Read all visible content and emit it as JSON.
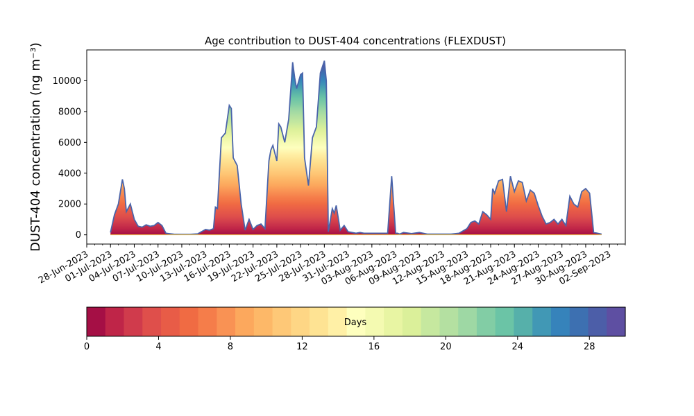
{
  "chart_data": {
    "type": "area",
    "title": "Age contribution to DUST-404 concentrations (FLEXDUST)",
    "ylabel": "DUST-404 concentration (ng m⁻³)",
    "xlabel": "",
    "y_ticks": [
      0,
      2000,
      4000,
      6000,
      8000,
      10000
    ],
    "y_tick_labels": [
      "0",
      "2000",
      "4000",
      "6000",
      "8000",
      "10000"
    ],
    "ylim": [
      -600,
      12000
    ],
    "x_range_dates": [
      "2023-06-28",
      "2023-09-04"
    ],
    "x_tick_labels": [
      "28-Jun-2023",
      "01-Jul-2023",
      "04-Jul-2023",
      "07-Jul-2023",
      "10-Jul-2023",
      "13-Jul-2023",
      "16-Jul-2023",
      "19-Jul-2023",
      "22-Jul-2023",
      "25-Jul-2023",
      "28-Jul-2023",
      "31-Jul-2023",
      "03-Aug-2023",
      "06-Aug-2023",
      "09-Aug-2023",
      "12-Aug-2023",
      "15-Aug-2023",
      "18-Aug-2023",
      "21-Aug-2023",
      "24-Aug-2023",
      "27-Aug-2023",
      "30-Aug-2023",
      "02-Sep-2023"
    ],
    "x_tick_dates": [
      "2023-06-28",
      "2023-07-01",
      "2023-07-04",
      "2023-07-07",
      "2023-07-10",
      "2023-07-13",
      "2023-07-16",
      "2023-07-19",
      "2023-07-22",
      "2023-07-25",
      "2023-07-28",
      "2023-07-31",
      "2023-08-03",
      "2023-08-06",
      "2023-08-09",
      "2023-08-12",
      "2023-08-15",
      "2023-08-18",
      "2023-08-21",
      "2023-08-24",
      "2023-08-27",
      "2023-08-30",
      "2023-09-02"
    ],
    "total_series": {
      "x": [
        "2023-07-01",
        "2023-07-01T12:00",
        "2023-07-02",
        "2023-07-02T12:00",
        "2023-07-02T18:00",
        "2023-07-03",
        "2023-07-03T12:00",
        "2023-07-04",
        "2023-07-04T12:00",
        "2023-07-05",
        "2023-07-05T12:00",
        "2023-07-06",
        "2023-07-06T12:00",
        "2023-07-07",
        "2023-07-07T12:00",
        "2023-07-08",
        "2023-07-09",
        "2023-07-10",
        "2023-07-11",
        "2023-07-12",
        "2023-07-13",
        "2023-07-13T12:00",
        "2023-07-14",
        "2023-07-14T06:00",
        "2023-07-14T12:00",
        "2023-07-15",
        "2023-07-15T12:00",
        "2023-07-16",
        "2023-07-16T06:00",
        "2023-07-16T12:00",
        "2023-07-17",
        "2023-07-17T12:00",
        "2023-07-18",
        "2023-07-18T12:00",
        "2023-07-19",
        "2023-07-19T12:00",
        "2023-07-20",
        "2023-07-20T12:00",
        "2023-07-21",
        "2023-07-21T06:00",
        "2023-07-21T12:00",
        "2023-07-22",
        "2023-07-22T06:00",
        "2023-07-22T12:00",
        "2023-07-23",
        "2023-07-23T12:00",
        "2023-07-24",
        "2023-07-24T06:00",
        "2023-07-24T12:00",
        "2023-07-25",
        "2023-07-25T06:00",
        "2023-07-25T12:00",
        "2023-07-26",
        "2023-07-26T12:00",
        "2023-07-27",
        "2023-07-27T12:00",
        "2023-07-28",
        "2023-07-28T06:00",
        "2023-07-28T12:00",
        "2023-07-29",
        "2023-07-29T06:00",
        "2023-07-29T12:00",
        "2023-07-30",
        "2023-07-30T12:00",
        "2023-07-31",
        "2023-07-31T12:00",
        "2023-08-01",
        "2023-08-01T12:00",
        "2023-08-02",
        "2023-08-03",
        "2023-08-04",
        "2023-08-05",
        "2023-08-05T12:00",
        "2023-08-06",
        "2023-08-06T06:00",
        "2023-08-06T12:00",
        "2023-08-07",
        "2023-08-08",
        "2023-08-09",
        "2023-08-10",
        "2023-08-11",
        "2023-08-12",
        "2023-08-13",
        "2023-08-14",
        "2023-08-15",
        "2023-08-15T12:00",
        "2023-08-16",
        "2023-08-16T12:00",
        "2023-08-17",
        "2023-08-17T12:00",
        "2023-08-18",
        "2023-08-18T06:00",
        "2023-08-18T12:00",
        "2023-08-19",
        "2023-08-19T12:00",
        "2023-08-20",
        "2023-08-20T12:00",
        "2023-08-21",
        "2023-08-21T12:00",
        "2023-08-22",
        "2023-08-22T12:00",
        "2023-08-23",
        "2023-08-23T12:00",
        "2023-08-24",
        "2023-08-24T12:00",
        "2023-08-25",
        "2023-08-25T12:00",
        "2023-08-26",
        "2023-08-26T12:00",
        "2023-08-27",
        "2023-08-27T12:00",
        "2023-08-28",
        "2023-08-28T12:00",
        "2023-08-29",
        "2023-08-29T12:00",
        "2023-08-30",
        "2023-08-30T12:00",
        "2023-08-31",
        "2023-09-01"
      ],
      "y": [
        150,
        1300,
        2000,
        3600,
        3000,
        1500,
        2000,
        1000,
        550,
        500,
        650,
        550,
        600,
        800,
        600,
        100,
        40,
        30,
        30,
        60,
        350,
        300,
        400,
        1800,
        1700,
        6300,
        6600,
        8400,
        8200,
        5000,
        4500,
        2000,
        300,
        1000,
        350,
        600,
        700,
        400,
        4800,
        5500,
        5800,
        4800,
        7200,
        7000,
        6000,
        7500,
        11200,
        10200,
        9500,
        10400,
        10500,
        5000,
        3200,
        6300,
        7000,
        10500,
        11300,
        10000,
        200,
        1700,
        1400,
        1900,
        300,
        600,
        200,
        150,
        100,
        150,
        100,
        100,
        100,
        100,
        3800,
        100,
        100,
        50,
        150,
        80,
        150,
        50,
        50,
        50,
        50,
        100,
        400,
        800,
        900,
        700,
        1500,
        1300,
        1000,
        3000,
        2700,
        3500,
        3600,
        1500,
        3800,
        2800,
        3500,
        3400,
        2200,
        2900,
        2700,
        1900,
        1200,
        700,
        800,
        1000,
        700,
        1000,
        600,
        2500,
        2000,
        1800,
        2800,
        3000,
        2700,
        150,
        50
      ]
    },
    "colorbar": {
      "label": "Days",
      "ticks": [
        0,
        4,
        8,
        12,
        16,
        20,
        24,
        28
      ],
      "range": [
        0,
        30
      ],
      "colors": [
        "#a50f45",
        "#bf2548",
        "#d03b4c",
        "#df4f4b",
        "#e85c47",
        "#f06b43",
        "#f57d4a",
        "#f99254",
        "#fca85d",
        "#fdb868",
        "#fec877",
        "#fed685",
        "#fee393",
        "#fff0a6",
        "#feffbe",
        "#f4fab1",
        "#e8f5a3",
        "#dbf09a",
        "#c6e89f",
        "#b4e0a1",
        "#9ed8a4",
        "#82cda5",
        "#6bc4a6",
        "#56b0aa",
        "#4198b5",
        "#3683bb",
        "#3d70b1",
        "#4c5ea8",
        "#5e4fa2"
      ]
    }
  }
}
